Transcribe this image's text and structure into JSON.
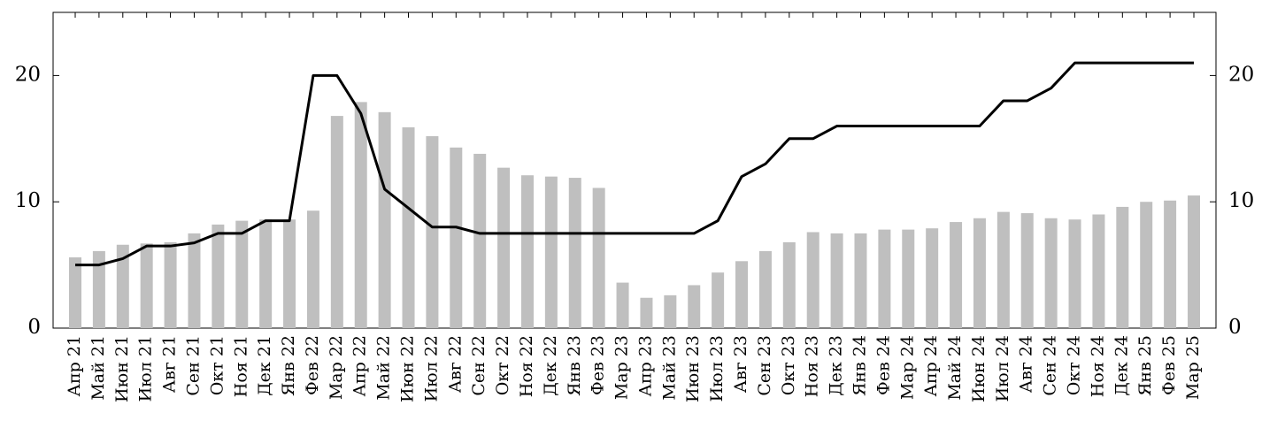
{
  "chart_data": {
    "type": "bar",
    "categories": [
      "Апр 21",
      "Май 21",
      "Июн 21",
      "Июл 21",
      "Авг 21",
      "Сен 21",
      "Окт 21",
      "Ноя 21",
      "Дек 21",
      "Янв 22",
      "Фев 22",
      "Мар 22",
      "Апр 22",
      "Май 22",
      "Июн 22",
      "Июл 22",
      "Авг 22",
      "Сен 22",
      "Окт 22",
      "Ноя 22",
      "Дек 22",
      "Янв 23",
      "Фев 23",
      "Мар 23",
      "Апр 23",
      "Май 23",
      "Июн 23",
      "Июл 23",
      "Авг 23",
      "Сен 23",
      "Окт 23",
      "Ноя 23",
      "Дек 23",
      "Янв 24",
      "Фев 24",
      "Мар 24",
      "Апр 24",
      "Май 24",
      "Июн 24",
      "Июл 24",
      "Авг 24",
      "Сен 24",
      "Окт 24",
      "Ноя 24",
      "Дек 24",
      "Янв 25",
      "Фев 25",
      "Мар 25"
    ],
    "series": [
      {
        "type": "bar",
        "color": "#bfbfbf",
        "values": [
          5.6,
          6.1,
          6.6,
          6.7,
          6.8,
          7.5,
          8.2,
          8.5,
          8.6,
          8.6,
          9.3,
          16.8,
          17.9,
          17.1,
          15.9,
          15.2,
          14.3,
          13.8,
          12.7,
          12.1,
          12.0,
          11.9,
          11.1,
          3.6,
          2.4,
          2.6,
          3.4,
          4.4,
          5.3,
          6.1,
          6.8,
          7.6,
          7.5,
          7.5,
          7.8,
          7.8,
          7.9,
          8.4,
          8.7,
          9.2,
          9.1,
          8.7,
          8.6,
          9.0,
          9.6,
          10.0,
          10.1,
          10.5
        ]
      },
      {
        "type": "line",
        "axis": "y2",
        "color": "#000000",
        "values": [
          5,
          5,
          5.5,
          6.5,
          6.5,
          6.75,
          7.5,
          7.5,
          8.5,
          8.5,
          20,
          20,
          17,
          11,
          9.5,
          8,
          8,
          7.5,
          7.5,
          7.5,
          7.5,
          7.5,
          7.5,
          7.5,
          7.5,
          7.5,
          7.5,
          8.5,
          12,
          13,
          15,
          15,
          16,
          16,
          16,
          16,
          16,
          16,
          16,
          18,
          18,
          19,
          21,
          21,
          21,
          21,
          21,
          21
        ]
      }
    ],
    "ylim": [
      0,
      25
    ],
    "yticks": [
      0,
      10,
      20
    ],
    "y2lim": [
      0,
      25
    ],
    "y2ticks": [
      0,
      10,
      20
    ]
  }
}
